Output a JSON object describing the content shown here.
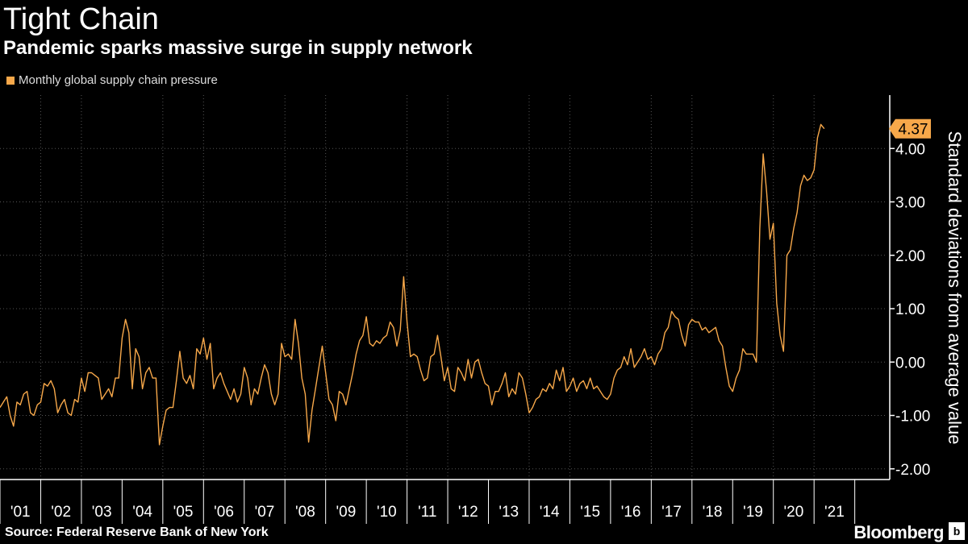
{
  "header": {
    "title": "Tight Chain",
    "subtitle": "Pandemic sparks massive surge in supply network"
  },
  "footer": {
    "source": "Source: Federal Reserve Bank of New York",
    "brand": "Bloomberg",
    "brand_icon": "b"
  },
  "colors": {
    "series": "#f7a84a",
    "background": "#000000",
    "grid": "#555555",
    "text": "#ffffff"
  },
  "chart_data": {
    "type": "line",
    "title": "Tight Chain",
    "subtitle": "Pandemic sparks massive surge in supply network",
    "xlabel": "",
    "ylabel": "Standard deviations from average value",
    "ylim": [
      -2.2,
      5.0
    ],
    "yticks": [
      -2,
      -1,
      0,
      1,
      2,
      3,
      4
    ],
    "ytick_labels": [
      "-2.00",
      "-1.00",
      "0.00",
      "1.00",
      "2.00",
      "3.00",
      "4.00"
    ],
    "xlim": [
      2001.0,
      2022.8
    ],
    "xticks": [
      2001,
      2002,
      2003,
      2004,
      2005,
      2006,
      2007,
      2008,
      2009,
      2010,
      2011,
      2012,
      2013,
      2014,
      2015,
      2016,
      2017,
      2018,
      2019,
      2020,
      2021
    ],
    "xtick_labels": [
      "'01",
      "'02",
      "'03",
      "'04",
      "'05",
      "'06",
      "'07",
      "'08",
      "'09",
      "'10",
      "'11",
      "'12",
      "'13",
      "'14",
      "'15",
      "'16",
      "'17",
      "'18",
      "'19",
      "'20",
      "'21"
    ],
    "vgrid_years": [
      2002,
      2003,
      2005,
      2006,
      2008,
      2009,
      2011,
      2012,
      2014,
      2015,
      2017,
      2018,
      2020,
      2021
    ],
    "legend": [
      "Monthly global supply chain pressure"
    ],
    "last_value_label": "4.37",
    "series": [
      {
        "name": "Monthly global supply chain pressure",
        "start_year": 2001.0,
        "step": 0.0833333,
        "values": [
          -0.85,
          -0.75,
          -0.65,
          -1.0,
          -1.2,
          -0.75,
          -0.8,
          -0.6,
          -0.55,
          -0.95,
          -1.0,
          -0.8,
          -0.75,
          -0.4,
          -0.45,
          -0.35,
          -0.5,
          -0.95,
          -0.8,
          -0.7,
          -0.95,
          -1.0,
          -0.7,
          -0.75,
          -0.3,
          -0.55,
          -0.2,
          -0.2,
          -0.25,
          -0.3,
          -0.7,
          -0.6,
          -0.5,
          -0.65,
          -0.3,
          -0.3,
          0.45,
          0.8,
          0.55,
          -0.5,
          0.25,
          0.1,
          -0.5,
          -0.2,
          -0.1,
          -0.3,
          -0.3,
          -1.55,
          -1.2,
          -0.9,
          -0.85,
          -0.85,
          -0.35,
          0.2,
          -0.3,
          -0.4,
          -0.25,
          -0.5,
          0.25,
          0.15,
          0.45,
          0.05,
          0.35,
          -0.5,
          -0.3,
          -0.2,
          -0.4,
          -0.55,
          -0.7,
          -0.5,
          -0.75,
          -0.6,
          -0.1,
          -0.3,
          -0.8,
          -0.5,
          -0.6,
          -0.3,
          -0.05,
          -0.2,
          -0.6,
          -0.8,
          -0.6,
          0.35,
          0.1,
          0.15,
          0.05,
          0.8,
          0.35,
          -0.3,
          -0.6,
          -1.5,
          -0.9,
          -0.5,
          -0.1,
          0.3,
          -0.2,
          -0.7,
          -0.8,
          -1.1,
          -0.55,
          -0.6,
          -0.8,
          -0.5,
          -0.2,
          0.15,
          0.4,
          0.5,
          0.85,
          0.35,
          0.3,
          0.4,
          0.35,
          0.45,
          0.5,
          0.75,
          0.65,
          0.3,
          0.6,
          1.6,
          0.75,
          0.1,
          0.15,
          0.1,
          -0.15,
          -0.35,
          -0.3,
          0.1,
          0.15,
          0.5,
          0.1,
          -0.35,
          -0.1,
          -0.5,
          -0.55,
          -0.1,
          -0.2,
          -0.35,
          0.05,
          -0.3,
          0.0,
          0.05,
          -0.2,
          -0.4,
          -0.45,
          -0.8,
          -0.55,
          -0.55,
          -0.4,
          -0.2,
          -0.65,
          -0.5,
          -0.6,
          -0.2,
          -0.3,
          -0.6,
          -0.95,
          -0.85,
          -0.7,
          -0.65,
          -0.5,
          -0.55,
          -0.4,
          -0.5,
          -0.15,
          -0.35,
          -0.1,
          -0.55,
          -0.45,
          -0.3,
          -0.55,
          -0.4,
          -0.35,
          -0.5,
          -0.3,
          -0.5,
          -0.45,
          -0.55,
          -0.65,
          -0.7,
          -0.6,
          -0.3,
          -0.15,
          -0.1,
          0.1,
          -0.05,
          0.25,
          -0.1,
          0.0,
          0.1,
          0.25,
          0.05,
          0.1,
          -0.05,
          0.15,
          0.25,
          0.55,
          0.65,
          0.95,
          0.85,
          0.8,
          0.5,
          0.3,
          0.7,
          0.8,
          0.75,
          0.75,
          0.6,
          0.65,
          0.55,
          0.6,
          0.65,
          0.4,
          0.3,
          -0.1,
          -0.45,
          -0.55,
          -0.3,
          -0.15,
          0.25,
          0.15,
          0.15,
          0.15,
          0.0,
          2.5,
          3.9,
          3.2,
          2.3,
          2.6,
          1.1,
          0.5,
          0.2,
          2.0,
          2.1,
          2.5,
          2.8,
          3.3,
          3.5,
          3.4,
          3.45,
          3.6,
          4.2,
          4.45,
          4.37
        ]
      }
    ]
  }
}
